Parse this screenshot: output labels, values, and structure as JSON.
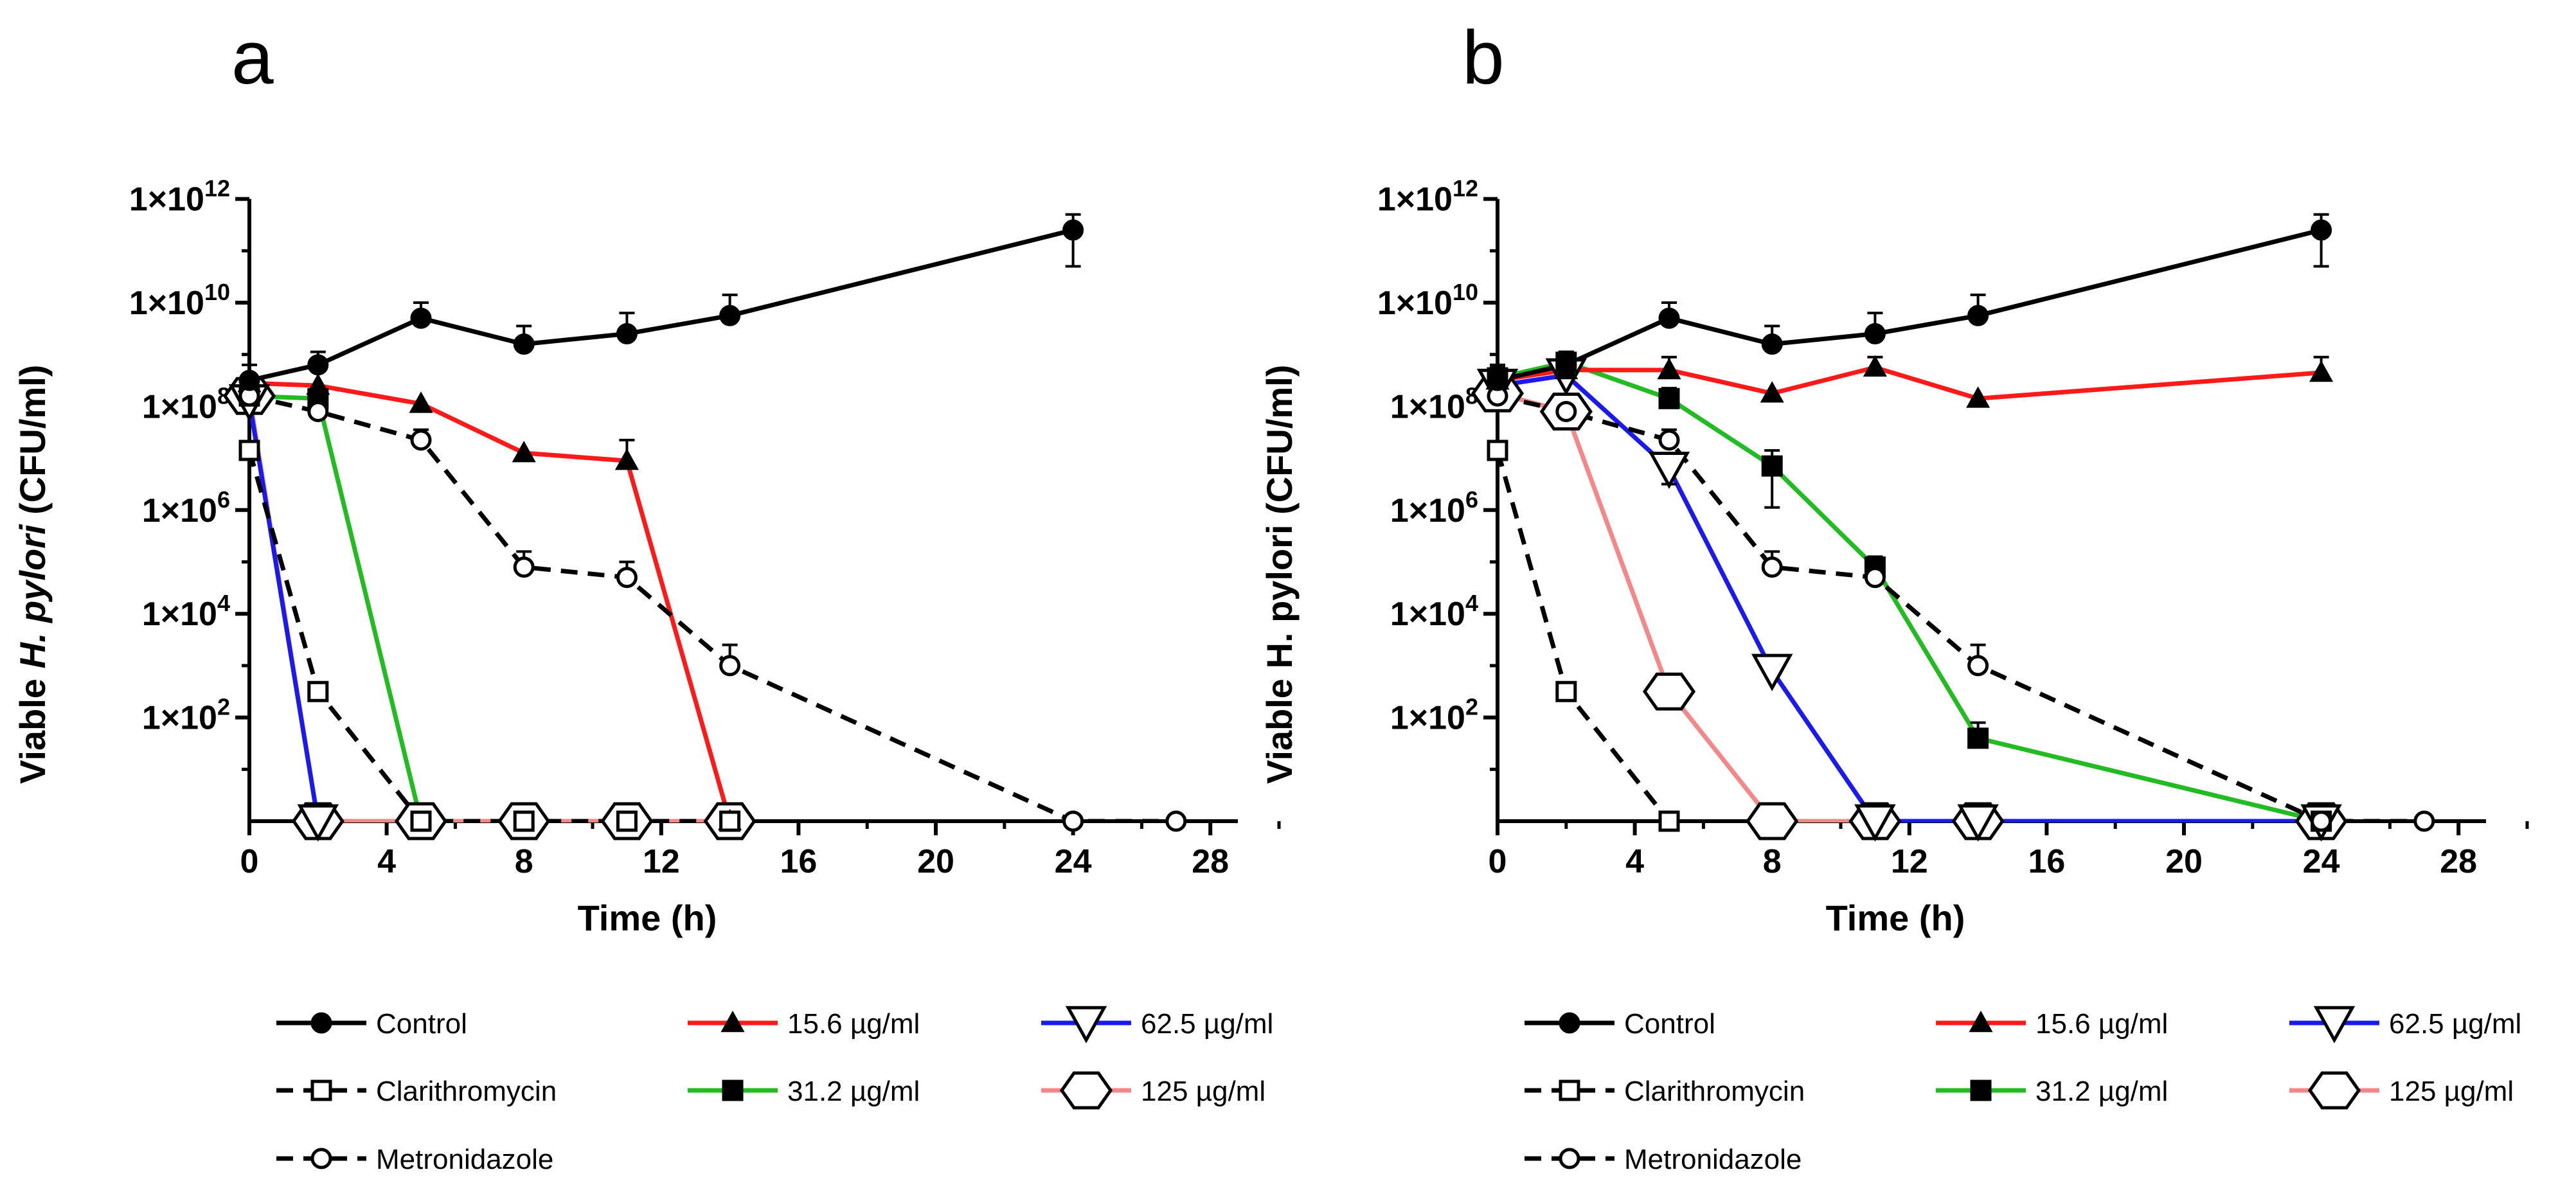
{
  "chart_data": [
    {
      "panel": "a",
      "type": "line",
      "xlabel": "Time (h)",
      "ylabel_prefix": "Viable ",
      "ylabel_italic": "H. pylori",
      "ylabel_suffix": " (CFU/ml)",
      "yscale": "log10",
      "xlim": [
        0,
        30
      ],
      "ylim_exponent": [
        0,
        12
      ],
      "xticks": [
        0,
        4,
        8,
        12,
        16,
        20,
        24,
        28
      ],
      "yticks": [
        {
          "exp": 2,
          "label": "1×10",
          "sup": "2"
        },
        {
          "exp": 4,
          "label": "1×10",
          "sup": "4"
        },
        {
          "exp": 6,
          "label": "1×10",
          "sup": "6"
        },
        {
          "exp": 8,
          "label": "1×10",
          "sup": "8"
        },
        {
          "exp": 10,
          "label": "1×10",
          "sup": "10"
        },
        {
          "exp": 12,
          "label": "1×10",
          "sup": "12"
        }
      ],
      "series": [
        {
          "name": "Control",
          "color": "#000000",
          "dash": "solid",
          "marker": "circle",
          "fill": "filled",
          "x": [
            0,
            2,
            5,
            8,
            11,
            14,
            24
          ],
          "log_y": [
            8.5,
            8.8,
            9.7,
            9.2,
            9.4,
            9.75,
            11.4
          ],
          "err_up": [
            0.3,
            0.25,
            0.3,
            0.35,
            0.4,
            0.4,
            0.3
          ],
          "err_down": [
            0,
            0,
            0,
            0,
            0,
            0,
            0.7
          ]
        },
        {
          "name": "Clarithromycin",
          "color": "#000000",
          "dash": "dashed",
          "marker": "square",
          "fill": "open",
          "x": [
            0,
            2,
            5,
            8,
            11,
            14
          ],
          "log_y": [
            7.15,
            2.5,
            0,
            0,
            0,
            0
          ]
        },
        {
          "name": "Metronidazole",
          "color": "#000000",
          "dash": "dashed",
          "marker": "circle",
          "fill": "open",
          "x": [
            0,
            2,
            5,
            8,
            11,
            14,
            24,
            27
          ],
          "log_y": [
            8.2,
            7.9,
            7.35,
            4.9,
            4.7,
            3.0,
            0,
            0
          ],
          "err_up": [
            0,
            0.2,
            0.2,
            0.3,
            0.3,
            0.4,
            0,
            0
          ],
          "err_down": [
            0,
            0,
            0,
            0,
            0,
            0,
            0,
            0
          ]
        },
        {
          "name": "15.6 µg/ml",
          "color": "#ff1a1a",
          "dash": "solid",
          "marker": "triangle-up",
          "fill": "filled",
          "x": [
            0,
            2,
            5,
            8,
            11,
            14
          ],
          "log_y": [
            8.45,
            8.4,
            8.05,
            7.1,
            6.95,
            0
          ],
          "err_up": [
            0,
            0,
            0,
            0,
            0.4,
            0
          ],
          "err_down": [
            0,
            0,
            0,
            0,
            0,
            0
          ]
        },
        {
          "name": "31.2 µg/ml",
          "color": "#22bb22",
          "dash": "solid",
          "marker": "square",
          "fill": "filled",
          "x": [
            0,
            2,
            5
          ],
          "log_y": [
            8.2,
            8.15,
            0
          ]
        },
        {
          "name": "62.5 µg/ml",
          "color": "#1a1aee",
          "dash": "solid",
          "marker": "triangle-down",
          "fill": "open",
          "x": [
            0,
            2
          ],
          "log_y": [
            8.1,
            0
          ]
        },
        {
          "name": "125 µg/ml",
          "color": "#f48888",
          "dash": "solid",
          "marker": "hexagon",
          "fill": "open",
          "x": [
            0,
            2,
            5,
            8,
            11,
            14
          ],
          "log_y": [
            8.2,
            0,
            0,
            0,
            0,
            0
          ]
        }
      ]
    },
    {
      "panel": "b",
      "type": "line",
      "xlabel": "Time (h)",
      "ylabel_prefix": "Viable ",
      "ylabel_italic": "",
      "ylabel_suffix": "H. pylori (CFU/ml)",
      "yscale": "log10",
      "xlim": [
        0,
        30
      ],
      "ylim_exponent": [
        0,
        12
      ],
      "xticks": [
        0,
        4,
        8,
        12,
        16,
        20,
        24,
        28
      ],
      "yticks": [
        {
          "exp": 2,
          "label": "1×10",
          "sup": "2"
        },
        {
          "exp": 4,
          "label": "1×10",
          "sup": "4"
        },
        {
          "exp": 6,
          "label": "1×10",
          "sup": "6"
        },
        {
          "exp": 8,
          "label": "1×10",
          "sup": "8"
        },
        {
          "exp": 10,
          "label": "1×10",
          "sup": "10"
        },
        {
          "exp": 12,
          "label": "1×10",
          "sup": "12"
        }
      ],
      "series": [
        {
          "name": "Control",
          "color": "#000000",
          "dash": "solid",
          "marker": "circle",
          "fill": "filled",
          "x": [
            0,
            2,
            5,
            8,
            11,
            14,
            24
          ],
          "log_y": [
            8.5,
            8.8,
            9.7,
            9.2,
            9.4,
            9.75,
            11.4
          ],
          "err_up": [
            0.3,
            0.25,
            0.3,
            0.35,
            0.4,
            0.4,
            0.3
          ],
          "err_down": [
            0,
            0,
            0,
            0,
            0,
            0,
            0.7
          ]
        },
        {
          "name": "Clarithromycin",
          "color": "#000000",
          "dash": "dashed",
          "marker": "square",
          "fill": "open",
          "x": [
            0,
            2,
            5
          ],
          "log_y": [
            7.15,
            2.5,
            0
          ]
        },
        {
          "name": "Metronidazole",
          "color": "#000000",
          "dash": "dashed",
          "marker": "circle",
          "fill": "open",
          "x": [
            0,
            2,
            5,
            8,
            11,
            14,
            24,
            27
          ],
          "log_y": [
            8.2,
            7.9,
            7.35,
            4.9,
            4.7,
            3.0,
            0,
            0
          ],
          "err_up": [
            0,
            0.2,
            0.2,
            0.3,
            0.3,
            0.4,
            0,
            0
          ],
          "err_down": [
            0,
            0,
            0,
            0,
            0,
            0,
            0,
            0
          ]
        },
        {
          "name": "15.6 µg/ml",
          "color": "#ff1a1a",
          "dash": "solid",
          "marker": "triangle-up",
          "fill": "filled",
          "x": [
            0,
            2,
            5,
            8,
            11,
            14,
            24
          ],
          "log_y": [
            8.5,
            8.7,
            8.7,
            8.25,
            8.75,
            8.15,
            8.65
          ],
          "err_up": [
            0,
            0,
            0.25,
            0,
            0.2,
            0,
            0.3
          ],
          "err_down": [
            0,
            0,
            0,
            0,
            0,
            0,
            0
          ]
        },
        {
          "name": "31.2 µg/ml",
          "color": "#22bb22",
          "dash": "solid",
          "marker": "square",
          "fill": "filled",
          "x": [
            0,
            2,
            5,
            8,
            11,
            14,
            24
          ],
          "log_y": [
            8.55,
            8.85,
            8.15,
            6.85,
            4.9,
            1.6,
            0
          ],
          "err_up": [
            0.2,
            0.2,
            0.2,
            0.3,
            0.2,
            0.3,
            0
          ],
          "err_down": [
            0,
            0,
            0,
            0.8,
            0,
            0,
            0
          ]
        },
        {
          "name": "62.5 µg/ml",
          "color": "#1a1aee",
          "dash": "solid",
          "marker": "triangle-down",
          "fill": "open",
          "x": [
            0,
            2,
            5,
            8,
            11,
            14,
            24
          ],
          "log_y": [
            8.4,
            8.6,
            6.8,
            2.9,
            0,
            0,
            0
          ],
          "err_up": [
            0,
            0,
            0,
            0.2,
            0,
            0,
            0
          ],
          "err_down": [
            0,
            0,
            0.3,
            0,
            0,
            0,
            0
          ]
        },
        {
          "name": "125 µg/ml",
          "color": "#f48888",
          "dash": "solid",
          "marker": "hexagon",
          "fill": "open",
          "x": [
            0,
            2,
            5,
            8,
            11,
            14,
            24
          ],
          "log_y": [
            8.25,
            7.9,
            2.5,
            0,
            0,
            0,
            0
          ]
        }
      ]
    }
  ]
}
